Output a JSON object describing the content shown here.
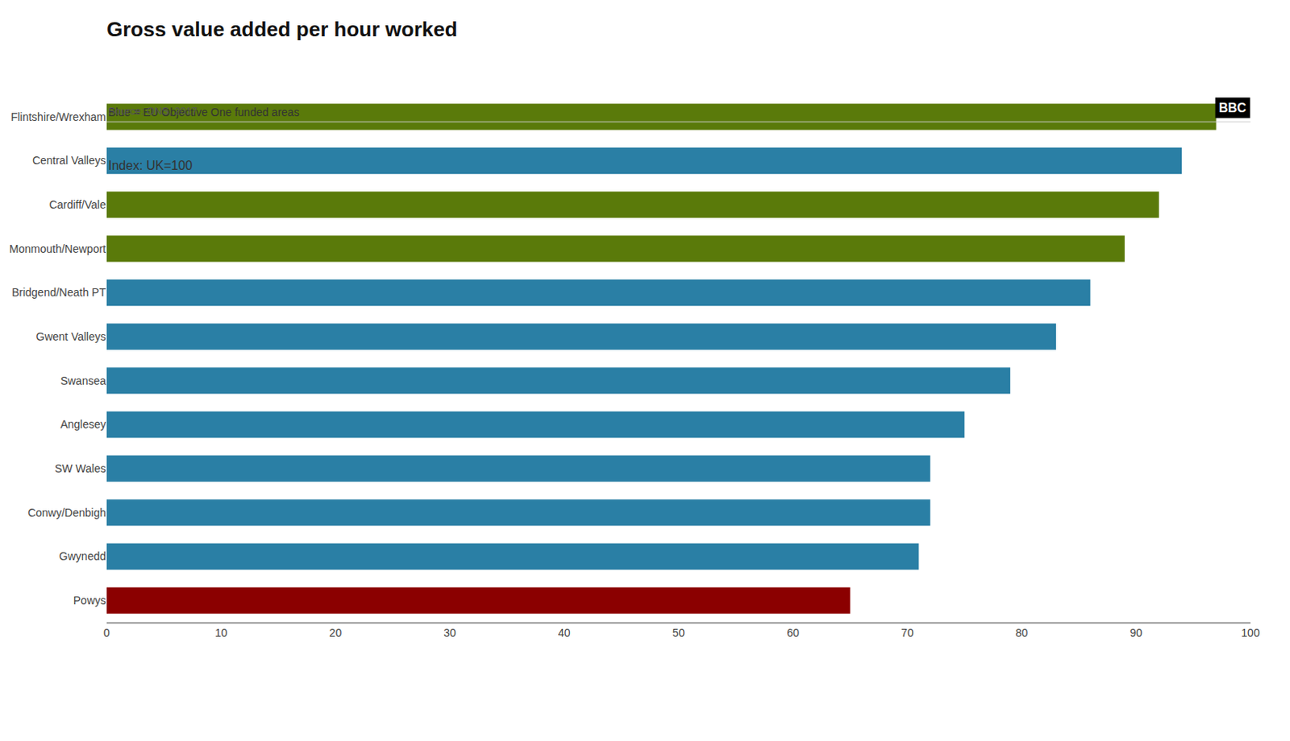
{
  "chart_data": {
    "type": "bar",
    "orientation": "horizontal",
    "title": "Gross value added per hour worked",
    "subtitle": "Index: UK=100",
    "categories": [
      "Flintshire/Wrexham",
      "Central Valleys",
      "Cardiff/Vale",
      "Monmouth/Newport",
      "Bridgend/Neath PT",
      "Gwent Valleys",
      "Swansea",
      "Anglesey",
      "SW Wales",
      "Conwy/Denbigh",
      "Gwynedd",
      "Powys"
    ],
    "values": [
      97,
      94,
      92,
      89,
      86,
      83,
      79,
      75,
      72,
      72,
      71,
      65
    ],
    "colors": [
      "#5a7a0a",
      "#2a7fa5",
      "#5a7a0a",
      "#5a7a0a",
      "#2a7fa5",
      "#2a7fa5",
      "#2a7fa5",
      "#2a7fa5",
      "#2a7fa5",
      "#2a7fa5",
      "#2a7fa5",
      "#8b0000"
    ],
    "xlim": [
      0,
      100
    ],
    "xticks": [
      0,
      10,
      20,
      30,
      40,
      50,
      60,
      70,
      80,
      90,
      100
    ],
    "grid": false,
    "annotations": [
      "Blue = EU Objective One funded areas",
      "Source: ONS, 2017",
      "BBC"
    ]
  }
}
